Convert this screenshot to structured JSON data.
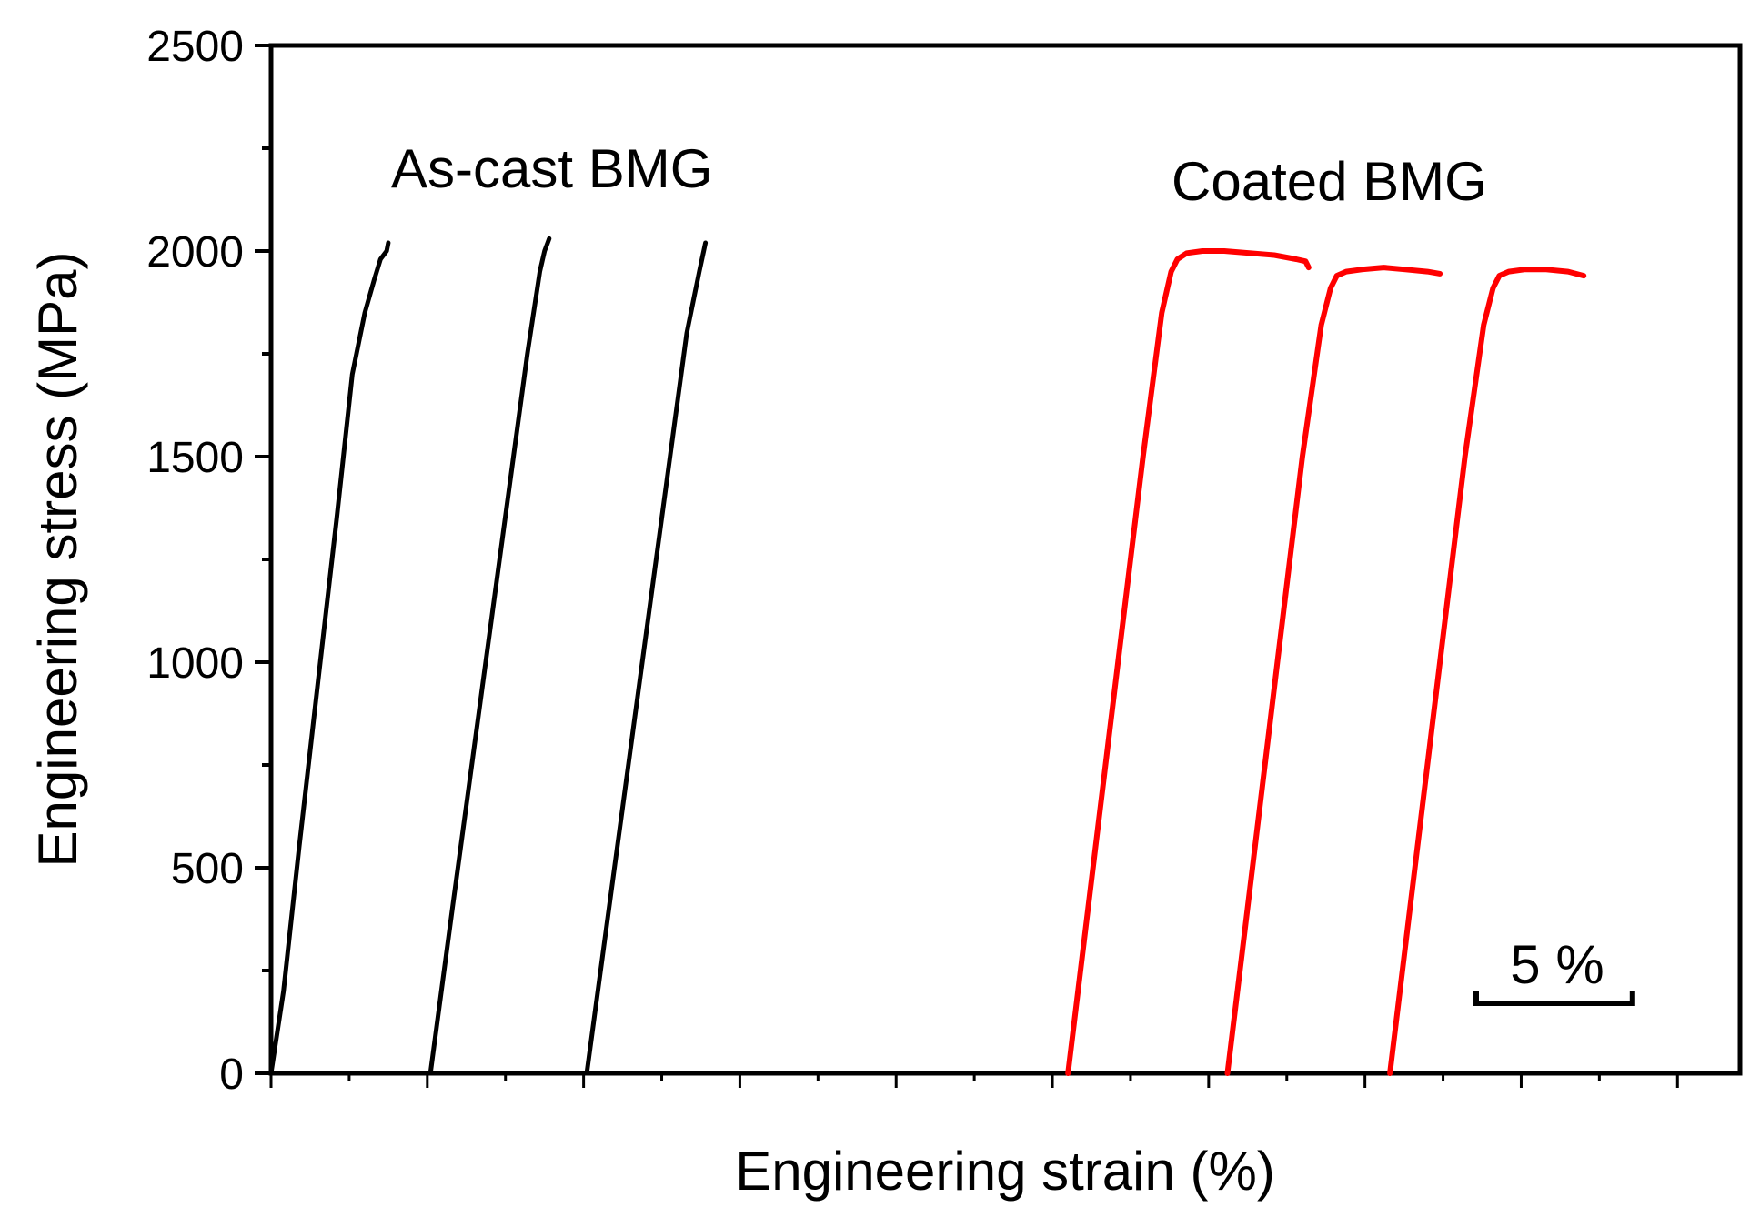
{
  "chart_data": {
    "type": "line",
    "title": "",
    "xlabel": "Engineering strain (%)",
    "ylabel": "Engineering stress (MPa)",
    "ylim": [
      0,
      2500
    ],
    "xlim": [
      0,
      47
    ],
    "yticks": [
      "0",
      "500",
      "1000",
      "1500",
      "2000",
      "2500"
    ],
    "ytick_values": [
      0,
      500,
      1000,
      1500,
      2000,
      2500
    ],
    "x_tick_labels_shown": false,
    "grid": false,
    "scale_bar": {
      "label": "5 %",
      "strain_span": 5
    },
    "annotations": [
      {
        "text": "As-cast BMG",
        "group": "as-cast"
      },
      {
        "text": "Coated BMG",
        "group": "coated"
      }
    ],
    "colors": {
      "as_cast": "#000000",
      "coated": "#ff0000",
      "axis": "#000000"
    },
    "series": [
      {
        "name": "As-cast BMG 1",
        "group": "as-cast",
        "color": "#000000",
        "x": [
          0,
          0.4,
          0.9,
          1.5,
          2.1,
          2.6,
          3.0,
          3.3,
          3.5,
          3.7,
          3.75
        ],
        "y": [
          0,
          200,
          550,
          950,
          1350,
          1700,
          1850,
          1930,
          1980,
          2000,
          2020
        ]
      },
      {
        "name": "As-cast BMG 2",
        "group": "as-cast",
        "color": "#000000",
        "x": [
          5.1,
          5.8,
          6.6,
          7.4,
          8.2,
          8.6,
          8.75,
          8.85,
          8.9
        ],
        "y": [
          0,
          400,
          850,
          1300,
          1750,
          1950,
          2000,
          2020,
          2030
        ]
      },
      {
        "name": "As-cast BMG 3",
        "group": "as-cast",
        "color": "#000000",
        "x": [
          10.1,
          10.9,
          11.7,
          12.5,
          13.3,
          13.7,
          13.9
        ],
        "y": [
          0,
          450,
          900,
          1350,
          1800,
          1950,
          2020
        ]
      },
      {
        "name": "Coated BMG 1",
        "group": "coated",
        "color": "#ff0000",
        "x": [
          25.5,
          26.3,
          27.1,
          27.9,
          28.5,
          28.8,
          29.0,
          29.3,
          29.8,
          30.5,
          31.3,
          32.1,
          32.8,
          33.1,
          33.2
        ],
        "y": [
          0,
          500,
          1000,
          1500,
          1850,
          1950,
          1980,
          1995,
          2000,
          2000,
          1995,
          1990,
          1980,
          1975,
          1960
        ]
      },
      {
        "name": "Coated BMG 2",
        "group": "coated",
        "color": "#ff0000",
        "x": [
          30.6,
          31.4,
          32.2,
          33.0,
          33.6,
          33.9,
          34.1,
          34.4,
          34.9,
          35.6,
          36.3,
          37.0,
          37.4
        ],
        "y": [
          0,
          500,
          1000,
          1500,
          1820,
          1910,
          1940,
          1950,
          1955,
          1960,
          1955,
          1950,
          1945
        ]
      },
      {
        "name": "Coated BMG 3",
        "group": "coated",
        "color": "#ff0000",
        "x": [
          35.8,
          36.6,
          37.4,
          38.2,
          38.8,
          39.1,
          39.3,
          39.6,
          40.1,
          40.8,
          41.5,
          42.0
        ],
        "y": [
          0,
          500,
          1000,
          1500,
          1820,
          1910,
          1940,
          1950,
          1955,
          1955,
          1950,
          1940
        ]
      }
    ]
  }
}
